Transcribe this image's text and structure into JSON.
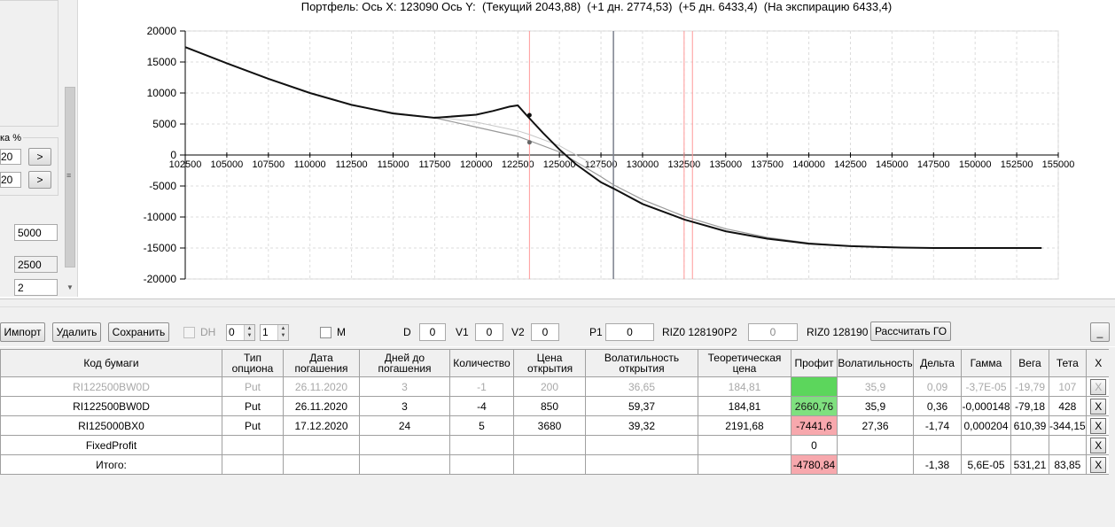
{
  "left_panel": {
    "rate_label": "ка %",
    "input1": "20",
    "input2": "20",
    "btn": ">",
    "field1": "5000",
    "field2": "2500",
    "field3": "2"
  },
  "chart": {
    "title": "Портфель: Ось X: 123090 Ось Y:  (Текущий 2043,88)  (+1 дн. 2774,53)  (+5 дн. 6433,4)  (На экспирацию 6433,4)"
  },
  "chart_data": {
    "type": "line",
    "title": "Портфель: Ось X: 123090 Ось Y:  (Текущий 2043,88)  (+1 дн. 2774,53)  (+5 дн. 6433,4)  (На экспирацию 6433,4)",
    "xlabel": "",
    "ylabel": "",
    "xlim": [
      102500,
      155000
    ],
    "ylim": [
      -20000,
      20000
    ],
    "x_ticks": [
      "102500",
      "105000",
      "107500",
      "110000",
      "112500",
      "115000",
      "117500",
      "120000",
      "122500",
      "125000",
      "127500",
      "130000",
      "132500",
      "135000",
      "137500",
      "140000",
      "142500",
      "145000",
      "147500",
      "150000",
      "152500",
      "155000"
    ],
    "y_ticks": [
      "20000",
      "15000",
      "10000",
      "5000",
      "0",
      "-5000",
      "-10000",
      "-15000",
      "-20000"
    ],
    "grid": true,
    "vlines": [
      {
        "x": 123200,
        "color": "#ff9999"
      },
      {
        "x": 128250,
        "color": "#7a7f8c"
      },
      {
        "x": 132500,
        "color": "#ff9999"
      },
      {
        "x": 133000,
        "color": "#ff9999"
      }
    ],
    "series": [
      {
        "color": "#111111",
        "x": [
          102500,
          105000,
          107500,
          110000,
          112500,
          115000,
          117500,
          120000,
          121000,
          122000,
          122500,
          123000,
          124000,
          125000,
          126000,
          127500,
          128250,
          130000,
          132500,
          135000,
          137500,
          140000,
          142500,
          145000,
          147500,
          150000,
          152500,
          154000
        ],
        "y": [
          17400,
          14800,
          12300,
          10000,
          8100,
          6700,
          6000,
          6500,
          7100,
          7800,
          8000,
          6500,
          3600,
          900,
          -1500,
          -4400,
          -5400,
          -7900,
          -10400,
          -12300,
          -13500,
          -14300,
          -14700,
          -14900,
          -15000,
          -15000,
          -15000,
          -15000
        ]
      },
      {
        "color": "#999999",
        "x": [
          102500,
          105000,
          107500,
          110000,
          112500,
          115000,
          117500,
          120000,
          122500,
          125000,
          127500,
          128250,
          130000,
          132500,
          135000,
          137500,
          140000,
          142500,
          145000,
          147500,
          150000,
          152500,
          154000
        ],
        "y": [
          17400,
          14800,
          12300,
          10000,
          8000,
          6800,
          6000,
          4500,
          3000,
          500,
          -3500,
          -4800,
          -7200,
          -9900,
          -11900,
          -13300,
          -14200,
          -14700,
          -14900,
          -15000,
          -15000,
          -15000,
          -15000
        ]
      },
      {
        "color": "#c8c8c8",
        "x": [
          117500,
          120000,
          122500,
          123200,
          125000,
          127500
        ],
        "y": [
          6200,
          5300,
          3900,
          3300,
          1500,
          -2200
        ]
      }
    ],
    "points": [
      {
        "x": 123200,
        "y": 6433,
        "color": "#111111"
      },
      {
        "x": 123200,
        "y": 2044,
        "color": "#666666"
      }
    ]
  },
  "toolbar": {
    "import_label": "Импорт",
    "delete_label": "Удалить",
    "save_label": "Сохранить",
    "dh_label": "DH",
    "spin1": "0",
    "spin2": "1",
    "m_label": "M",
    "d_label": "D",
    "d_value": "0",
    "v1_label": "V1",
    "v1_value": "0",
    "v2_label": "V2",
    "v2_value": "0",
    "p1_label": "P1",
    "p1_value": "0",
    "riz1": "RIZ0 128190",
    "p2_label": "P2",
    "p2_value": "0",
    "riz2": "RIZ0 128190",
    "calc_label": "Рассчитать ГО",
    "minimize_label": "_"
  },
  "grid": {
    "headers": [
      "Код бумаги",
      "Тип опциона",
      "Дата погашения",
      "Дней до погашения",
      "Количество",
      "Цена открытия",
      "Волатильность открытия",
      "Теоретическая цена",
      "Профит",
      "Волатильность",
      "Дельта",
      "Гамма",
      "Вега",
      "Тета",
      "X"
    ],
    "x_label": "X",
    "rows": [
      {
        "code": "RI122500BW0D",
        "type": "Put",
        "date": "26.11.2020",
        "days": "3",
        "qty": "-1",
        "open": "200",
        "vol_open": "36,65",
        "theo": "184,81",
        "profit": "",
        "vol": "35,9",
        "delta": "0,09",
        "gamma": "-3,7E-05",
        "vega": "-19,79",
        "theta": "107"
      },
      {
        "code": "RI122500BW0D",
        "type": "Put",
        "date": "26.11.2020",
        "days": "3",
        "qty": "-4",
        "open": "850",
        "vol_open": "59,37",
        "theo": "184,81",
        "profit": "2660,76",
        "vol": "35,9",
        "delta": "0,36",
        "gamma": "-0,000148",
        "vega": "-79,18",
        "theta": "428"
      },
      {
        "code": "RI125000BX0",
        "type": "Put",
        "date": "17.12.2020",
        "days": "24",
        "qty": "5",
        "open": "3680",
        "vol_open": "39,32",
        "theo": "2191,68",
        "profit": "-7441,6",
        "vol": "27,36",
        "delta": "-1,74",
        "gamma": "0,000204",
        "vega": "610,39",
        "theta": "-344,15"
      },
      {
        "code": "FixedProfit",
        "type": "",
        "date": "",
        "days": "",
        "qty": "",
        "open": "",
        "vol_open": "",
        "theo": "",
        "profit": "0",
        "vol": "",
        "delta": "",
        "gamma": "",
        "vega": "",
        "theta": ""
      },
      {
        "code": "Итого:",
        "type": "",
        "date": "",
        "days": "",
        "qty": "",
        "open": "",
        "vol_open": "",
        "theo": "",
        "profit": "-4780,84",
        "vol": "",
        "delta": "-1,38",
        "gamma": "5,6E-05",
        "vega": "531,21",
        "theta": "83,85"
      }
    ]
  }
}
